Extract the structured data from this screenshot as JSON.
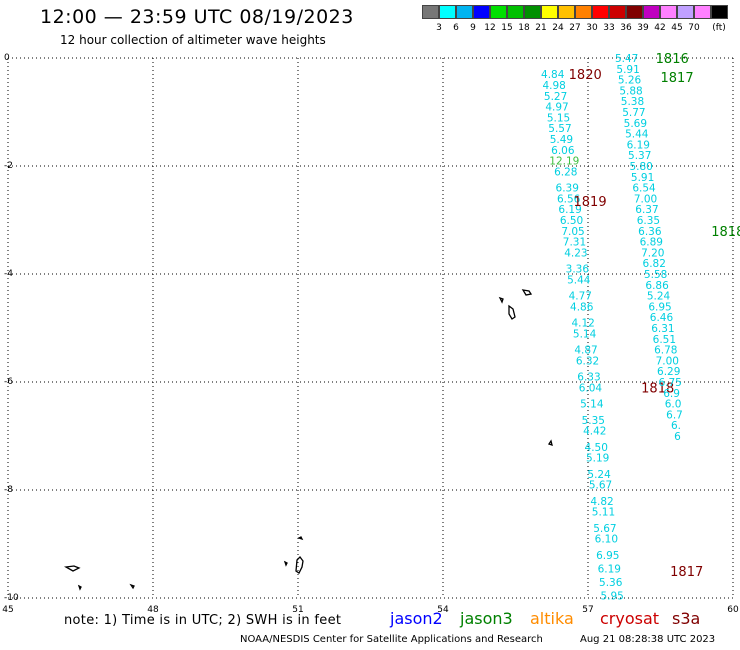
{
  "header": {
    "title": "12:00 — 23:59 UTC 08/19/2023",
    "subtitle": "12 hour collection of altimeter wave heights"
  },
  "scale": {
    "colors": [
      "#777777",
      "#00ffff",
      "#00b4f0",
      "#0000ff",
      "#00e000",
      "#00c000",
      "#009000",
      "#ffff00",
      "#ffc000",
      "#ff8000",
      "#ff0000",
      "#cc0000",
      "#800000",
      "#c000c0",
      "#ff80ff",
      "#c0a0ff",
      "#ff80ff",
      "#000000"
    ],
    "labels": [
      "3",
      "6",
      "9",
      "12",
      "15",
      "18",
      "21",
      "24",
      "27",
      "30",
      "33",
      "36",
      "39",
      "42",
      "45",
      "70"
    ],
    "unit": "(ft)"
  },
  "axes": {
    "x_ticks": [
      "45",
      "48",
      "51",
      "54",
      "57",
      "60"
    ],
    "y_ticks": [
      "0",
      "-2",
      "-4",
      "-6",
      "-8",
      "-10"
    ]
  },
  "tracks": {
    "color": "#00cfe0",
    "west": {
      "labels": [
        {
          "text": "1820",
          "lon": 56.6,
          "lat": -0.3,
          "color": "#800000"
        },
        {
          "text": "1819",
          "lon": 56.7,
          "lat": -2.65,
          "color": "#800000"
        },
        {
          "text": "1818",
          "lon": 58.1,
          "lat": -6.1,
          "color": "#800000"
        },
        {
          "text": "1817",
          "lon": 58.7,
          "lat": -9.5,
          "color": "#800000"
        }
      ],
      "points": [
        {
          "lon": 56.27,
          "lat": -0.3,
          "v": "4.84"
        },
        {
          "lon": 56.3,
          "lat": -0.5,
          "v": "4.98"
        },
        {
          "lon": 56.33,
          "lat": -0.7,
          "v": "5.27"
        },
        {
          "lon": 56.36,
          "lat": -0.9,
          "v": "4.97"
        },
        {
          "lon": 56.39,
          "lat": -1.1,
          "v": "5.15"
        },
        {
          "lon": 56.42,
          "lat": -1.3,
          "v": "5.57"
        },
        {
          "lon": 56.45,
          "lat": -1.5,
          "v": "5.49"
        },
        {
          "lon": 56.48,
          "lat": -1.7,
          "v": "6.06"
        },
        {
          "lon": 56.51,
          "lat": -1.9,
          "v": "12.19",
          "c": "#40c040"
        },
        {
          "lon": 56.54,
          "lat": -2.1,
          "v": "6.28"
        },
        {
          "lon": 56.57,
          "lat": -2.4,
          "v": "6.39"
        },
        {
          "lon": 56.6,
          "lat": -2.6,
          "v": "6.56"
        },
        {
          "lon": 56.63,
          "lat": -2.8,
          "v": "6.19"
        },
        {
          "lon": 56.66,
          "lat": -3.0,
          "v": "6.50"
        },
        {
          "lon": 56.69,
          "lat": -3.2,
          "v": "7.05"
        },
        {
          "lon": 56.72,
          "lat": -3.4,
          "v": "7.31"
        },
        {
          "lon": 56.75,
          "lat": -3.6,
          "v": "4.23"
        },
        {
          "lon": 56.78,
          "lat": -3.9,
          "v": "3.36"
        },
        {
          "lon": 56.81,
          "lat": -4.1,
          "v": "5.44"
        },
        {
          "lon": 56.84,
          "lat": -4.4,
          "v": "4.77"
        },
        {
          "lon": 56.87,
          "lat": -4.6,
          "v": "4.86"
        },
        {
          "lon": 56.9,
          "lat": -4.9,
          "v": "4.12"
        },
        {
          "lon": 56.93,
          "lat": -5.1,
          "v": "5.14"
        },
        {
          "lon": 56.96,
          "lat": -5.4,
          "v": "4.87"
        },
        {
          "lon": 56.99,
          "lat": -5.6,
          "v": "6.32"
        },
        {
          "lon": 57.02,
          "lat": -5.9,
          "v": "6.33"
        },
        {
          "lon": 57.05,
          "lat": -6.1,
          "v": "6.04"
        },
        {
          "lon": 57.08,
          "lat": -6.4,
          "v": "5.14"
        },
        {
          "lon": 57.11,
          "lat": -6.7,
          "v": "5.35"
        },
        {
          "lon": 57.14,
          "lat": -6.9,
          "v": "4.42"
        },
        {
          "lon": 57.17,
          "lat": -7.2,
          "v": "4.50"
        },
        {
          "lon": 57.2,
          "lat": -7.4,
          "v": "5.19"
        },
        {
          "lon": 57.23,
          "lat": -7.7,
          "v": "5.24"
        },
        {
          "lon": 57.26,
          "lat": -7.9,
          "v": "5.67"
        },
        {
          "lon": 57.29,
          "lat": -8.2,
          "v": "4.82"
        },
        {
          "lon": 57.32,
          "lat": -8.4,
          "v": "5.11"
        },
        {
          "lon": 57.35,
          "lat": -8.7,
          "v": "5.67"
        },
        {
          "lon": 57.38,
          "lat": -8.9,
          "v": "6.10"
        },
        {
          "lon": 57.41,
          "lat": -9.2,
          "v": "6.95"
        },
        {
          "lon": 57.44,
          "lat": -9.45,
          "v": "6.19"
        },
        {
          "lon": 57.47,
          "lat": -9.7,
          "v": "5.36"
        },
        {
          "lon": 57.5,
          "lat": -9.95,
          "v": "5.95"
        }
      ]
    },
    "east": {
      "labels": [
        {
          "text": "1816",
          "lon": 58.4,
          "lat": 0.0,
          "color": "#008000"
        },
        {
          "text": "1817",
          "lon": 58.5,
          "lat": -0.35,
          "color": "#008000"
        },
        {
          "text": "1818",
          "lon": 59.55,
          "lat": -3.2,
          "color": "#008000"
        }
      ],
      "points": [
        {
          "lon": 57.8,
          "lat": 0.0,
          "v": "5.47"
        },
        {
          "lon": 57.83,
          "lat": -0.2,
          "v": "5.91"
        },
        {
          "lon": 57.86,
          "lat": -0.4,
          "v": "5.26"
        },
        {
          "lon": 57.89,
          "lat": -0.6,
          "v": "5.88"
        },
        {
          "lon": 57.92,
          "lat": -0.8,
          "v": "5.38"
        },
        {
          "lon": 57.95,
          "lat": -1.0,
          "v": "5.77"
        },
        {
          "lon": 57.98,
          "lat": -1.2,
          "v": "5.69"
        },
        {
          "lon": 58.01,
          "lat": -1.4,
          "v": "5.44"
        },
        {
          "lon": 58.04,
          "lat": -1.6,
          "v": "6.19"
        },
        {
          "lon": 58.07,
          "lat": -1.8,
          "v": "5.37"
        },
        {
          "lon": 58.1,
          "lat": -2.0,
          "v": "5.80"
        },
        {
          "lon": 58.13,
          "lat": -2.2,
          "v": "5.91"
        },
        {
          "lon": 58.16,
          "lat": -2.4,
          "v": "6.54"
        },
        {
          "lon": 58.19,
          "lat": -2.6,
          "v": "7.00"
        },
        {
          "lon": 58.22,
          "lat": -2.8,
          "v": "6.37"
        },
        {
          "lon": 58.25,
          "lat": -3.0,
          "v": "6.35"
        },
        {
          "lon": 58.28,
          "lat": -3.2,
          "v": "6.36"
        },
        {
          "lon": 58.31,
          "lat": -3.4,
          "v": "6.89"
        },
        {
          "lon": 58.34,
          "lat": -3.6,
          "v": "7.20"
        },
        {
          "lon": 58.37,
          "lat": -3.8,
          "v": "6.82"
        },
        {
          "lon": 58.4,
          "lat": -4.0,
          "v": "5.58"
        },
        {
          "lon": 58.43,
          "lat": -4.2,
          "v": "6.86"
        },
        {
          "lon": 58.46,
          "lat": -4.4,
          "v": "5.24"
        },
        {
          "lon": 58.49,
          "lat": -4.6,
          "v": "6.95"
        },
        {
          "lon": 58.52,
          "lat": -4.8,
          "v": "6.46"
        },
        {
          "lon": 58.55,
          "lat": -5.0,
          "v": "6.31"
        },
        {
          "lon": 58.58,
          "lat": -5.2,
          "v": "6.51"
        },
        {
          "lon": 58.61,
          "lat": -5.4,
          "v": "6.78"
        },
        {
          "lon": 58.64,
          "lat": -5.6,
          "v": "7.00"
        },
        {
          "lon": 58.67,
          "lat": -5.8,
          "v": "6.29"
        },
        {
          "lon": 58.7,
          "lat": -6.0,
          "v": "6.75"
        },
        {
          "lon": 58.73,
          "lat": -6.2,
          "v": "6.9"
        },
        {
          "lon": 58.76,
          "lat": -6.4,
          "v": "6.0"
        },
        {
          "lon": 58.79,
          "lat": -6.6,
          "v": "6.7"
        },
        {
          "lon": 58.82,
          "lat": -6.8,
          "v": "6."
        },
        {
          "lon": 58.85,
          "lat": -7.0,
          "v": "6"
        }
      ]
    }
  },
  "footer": {
    "note": "note: 1) Time is in UTC; 2) SWH is in feet",
    "satellites": [
      {
        "name": "jason2",
        "color": "#0000ff"
      },
      {
        "name": "jason3",
        "color": "#008000"
      },
      {
        "name": "altika",
        "color": "#ff8c00"
      },
      {
        "name": "cryosat",
        "color": "#cc0000"
      },
      {
        "name": "s3a",
        "color": "#800000"
      }
    ],
    "credit": "NOAA/NESDIS Center for Satellite Applications and Research",
    "timestamp": "Aug 21 08:28:38 UTC 2023"
  }
}
